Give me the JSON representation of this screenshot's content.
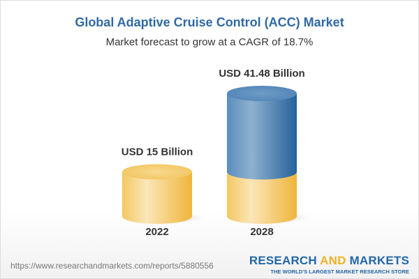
{
  "chart_data": {
    "type": "bar",
    "style": "3d-cylinder",
    "title": "Global Adaptive Cruise Control (ACC) Market",
    "subtitle": "Market forecast to grow at a CAGR of 18.7%",
    "categories": [
      "2022",
      "2028"
    ],
    "values": [
      15,
      41.48
    ],
    "data_labels": [
      "USD 15 Billion",
      "USD 41.48 Billion"
    ],
    "unit": "USD Billion",
    "colors": {
      "base": "#f2c04f",
      "growth": "#3f77ac",
      "title": "#2f6aa3"
    },
    "grid": false
  },
  "footer": {
    "url": "https://www.researchandmarkets.com/reports/5880556",
    "logo_part1": "RESEARCH ",
    "logo_part2": "AND",
    "logo_part3": " MARKETS",
    "tagline": "THE WORLD'S LARGEST MARKET RESEARCH STORE"
  }
}
